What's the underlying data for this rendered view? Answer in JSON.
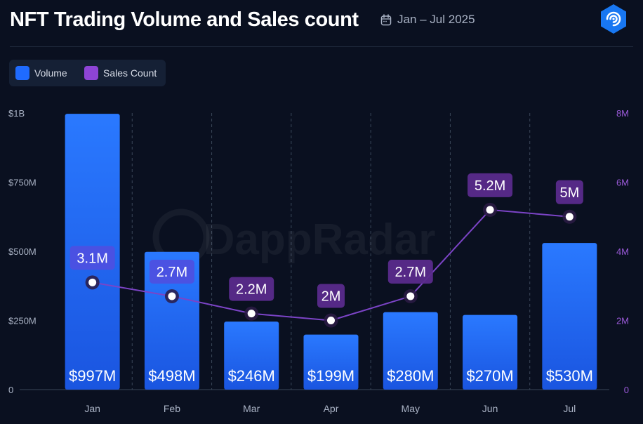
{
  "header": {
    "title": "NFT Trading Volume and Sales count",
    "date_range": "Jan – Jul 2025",
    "calendar_icon": "calendar-icon",
    "logo_icon": "dappradar-logo-icon"
  },
  "legend": [
    {
      "label": "Volume",
      "color": "#1f6bff"
    },
    {
      "label": "Sales Count",
      "color": "#8e44d6"
    }
  ],
  "watermark": "DappRadar",
  "colors": {
    "background": "#0a1020",
    "bar_top": "#2a79ff",
    "bar_bottom": "#1a55e0",
    "line": "#7c44c7",
    "label_box_blue": "#4d50e0",
    "label_box_purple": "#5a2b8c",
    "right_axis_text": "#9b5ad9",
    "left_axis_text": "#aab3c5"
  },
  "chart_data": {
    "type": "bar",
    "categories": [
      "Jan",
      "Feb",
      "Mar",
      "Apr",
      "May",
      "Jun",
      "Jul"
    ],
    "series": [
      {
        "name": "Volume",
        "chart_type": "bar",
        "axis": "left",
        "values": [
          997000000,
          498000000,
          246000000,
          199000000,
          280000000,
          270000000,
          530000000
        ],
        "data_labels": [
          "$997M",
          "$498M",
          "$246M",
          "$199M",
          "$280M",
          "$270M",
          "$530M"
        ]
      },
      {
        "name": "Sales Count",
        "chart_type": "line",
        "axis": "right",
        "values": [
          3100000,
          2700000,
          2200000,
          2000000,
          2700000,
          5200000,
          5000000
        ],
        "data_labels": [
          "3.1M",
          "2.7M",
          "2.2M",
          "2M",
          "2.7M",
          "5.2M",
          "5M"
        ]
      }
    ],
    "y_left": {
      "range": [
        0,
        1000000000
      ],
      "ticks": [
        0,
        250000000,
        500000000,
        750000000,
        1000000000
      ],
      "tick_labels": [
        "0",
        "$250M",
        "$500M",
        "$750M",
        "$1B"
      ]
    },
    "y_right": {
      "range": [
        0,
        8000000
      ],
      "ticks": [
        0,
        2000000,
        4000000,
        6000000,
        8000000
      ],
      "tick_labels": [
        "0",
        "2M",
        "4M",
        "6M",
        "8M"
      ]
    },
    "grid": "vertical dashed between categories, solid horizontal baseline",
    "legend_position": "top-left"
  }
}
